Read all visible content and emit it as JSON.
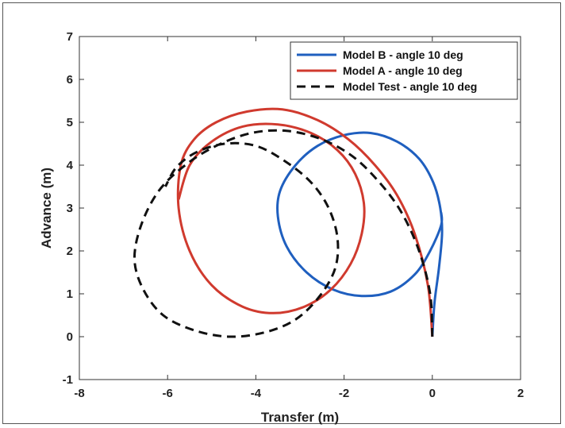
{
  "chart_data": {
    "type": "line",
    "title": "",
    "xlabel": "Transfer (m)",
    "ylabel": "Advance (m)",
    "xlim": [
      -8,
      2
    ],
    "ylim": [
      -1,
      7
    ],
    "xticks": [
      "-8",
      "-6",
      "-4",
      "-2",
      "0",
      "2"
    ],
    "yticks": [
      "-1",
      "0",
      "1",
      "2",
      "3",
      "4",
      "5",
      "6",
      "7"
    ],
    "grid": false,
    "legend_position": "top-right",
    "series": [
      {
        "name": "Model B - angle 10 deg",
        "color": "#1f5fbf",
        "style": "solid",
        "x": [
          0.0,
          0.05,
          0.15,
          0.22,
          0.18,
          0.02,
          -0.3,
          -0.8,
          -1.4,
          -2.0,
          -2.6,
          -3.1,
          -3.45,
          -3.5,
          -3.3,
          -2.85,
          -2.25,
          -1.6,
          -0.95,
          -0.4,
          -0.05,
          0.2,
          0.2
        ],
        "y": [
          0.0,
          0.8,
          1.6,
          2.4,
          3.0,
          3.6,
          4.15,
          4.55,
          4.75,
          4.7,
          4.45,
          4.0,
          3.4,
          2.8,
          2.1,
          1.5,
          1.1,
          0.95,
          1.05,
          1.45,
          2.0,
          2.6,
          2.9
        ]
      },
      {
        "name": "Model A - angle 10 deg",
        "color": "#d03a2e",
        "style": "solid",
        "x": [
          0.0,
          -0.1,
          -0.4,
          -0.8,
          -1.3,
          -1.9,
          -2.6,
          -3.4,
          -4.2,
          -4.9,
          -5.4,
          -5.7,
          -5.75,
          -5.5,
          -5.0,
          -4.3,
          -3.6,
          -2.9,
          -2.3,
          -1.85,
          -1.6,
          -1.55,
          -1.75,
          -2.15,
          -2.75,
          -3.5,
          -4.3,
          -5.0,
          -5.5,
          -5.75
        ],
        "y": [
          0.0,
          1.2,
          2.4,
          3.3,
          4.0,
          4.6,
          5.05,
          5.3,
          5.25,
          5.0,
          4.6,
          4.0,
          3.0,
          2.0,
          1.2,
          0.7,
          0.55,
          0.7,
          1.1,
          1.7,
          2.4,
          3.1,
          3.8,
          4.35,
          4.75,
          4.95,
          4.9,
          4.55,
          4.0,
          3.2
        ]
      },
      {
        "name": "Model Test - angle 10 deg",
        "color": "#111111",
        "style": "dashed",
        "x": [
          0.0,
          -0.05,
          -0.3,
          -0.7,
          -1.2,
          -1.8,
          -2.5,
          -3.3,
          -4.1,
          -4.9,
          -5.6,
          -6.2,
          -6.6,
          -6.75,
          -6.55,
          -6.1,
          -5.4,
          -4.6,
          -3.8,
          -3.1,
          -2.55,
          -2.2,
          -2.15,
          -2.35,
          -2.75,
          -3.35,
          -4.0,
          -4.7,
          -5.35,
          -5.8,
          -6.05
        ],
        "y": [
          0.0,
          1.0,
          2.0,
          2.9,
          3.6,
          4.2,
          4.6,
          4.8,
          4.75,
          4.45,
          4.0,
          3.4,
          2.6,
          1.8,
          1.1,
          0.5,
          0.15,
          0.0,
          0.1,
          0.4,
          0.95,
          1.6,
          2.3,
          3.0,
          3.6,
          4.1,
          4.45,
          4.5,
          4.3,
          3.95,
          3.5
        ]
      }
    ]
  }
}
